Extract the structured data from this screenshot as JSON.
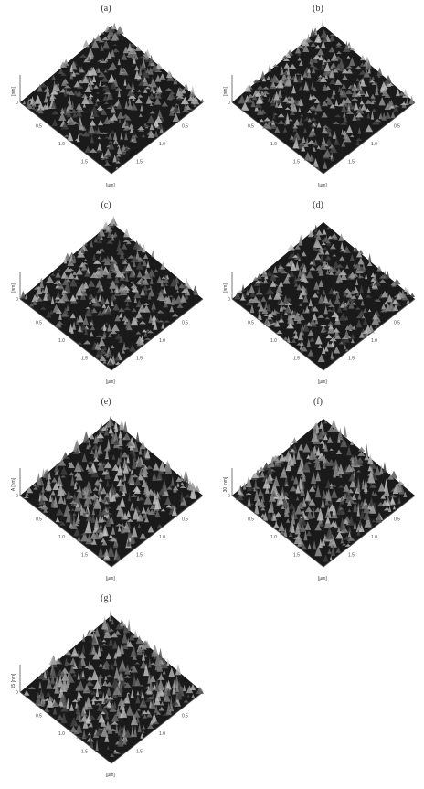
{
  "figure": {
    "panels": [
      {
        "label": "(a)",
        "z_label": "[nm]",
        "x_label": "[µm]",
        "x_ticks": [
          "0.5",
          "1.0",
          "1.5"
        ],
        "y_ticks": [
          "0.5",
          "1.0",
          "1.5"
        ],
        "z_ticks": [
          "0"
        ]
      },
      {
        "label": "(b)",
        "z_label": "[nm]",
        "x_label": "[µm]",
        "x_ticks": [
          "0.5",
          "1.0",
          "1.5"
        ],
        "y_ticks": [
          "0.5",
          "1.0",
          "1.5"
        ],
        "z_ticks": [
          "0"
        ]
      },
      {
        "label": "(c)",
        "z_label": "[nm]",
        "x_label": "[µm]",
        "x_ticks": [
          "0.5",
          "1.0",
          "1.5"
        ],
        "y_ticks": [
          "0.5",
          "1.0",
          "1.5"
        ],
        "z_ticks": [
          "0"
        ]
      },
      {
        "label": "(d)",
        "z_label": "[nm]",
        "x_label": "[µm]",
        "x_ticks": [
          "0.5",
          "1.0",
          "1.5"
        ],
        "y_ticks": [
          "0.5",
          "1.0",
          "1.5"
        ],
        "z_ticks": [
          "0"
        ]
      },
      {
        "label": "(e)",
        "z_label": "A [nm]",
        "x_label": "[µm]",
        "x_ticks": [
          "0.5",
          "1.0",
          "1.5"
        ],
        "y_ticks": [
          "0.5",
          "1.0",
          "1.5"
        ],
        "z_ticks": [
          "0"
        ]
      },
      {
        "label": "(f)",
        "z_label": "30 [nm]",
        "x_label": "[µm]",
        "x_ticks": [
          "0.5",
          "1.0",
          "1.5"
        ],
        "y_ticks": [
          "0.5",
          "1.0",
          "1.5"
        ],
        "z_ticks": [
          "0"
        ]
      },
      {
        "label": "(g)",
        "z_label": "15 [nm]",
        "x_label": "[µm]",
        "x_ticks": [
          "0.5",
          "1.0",
          "1.5"
        ],
        "y_ticks": [
          "0.5",
          "1.0",
          "1.5"
        ],
        "z_ticks": [
          "0"
        ]
      }
    ]
  },
  "colors": {
    "surface_dark": "#1a1a1a",
    "surface_light": "#bdbdbd",
    "background": "#ffffff"
  }
}
